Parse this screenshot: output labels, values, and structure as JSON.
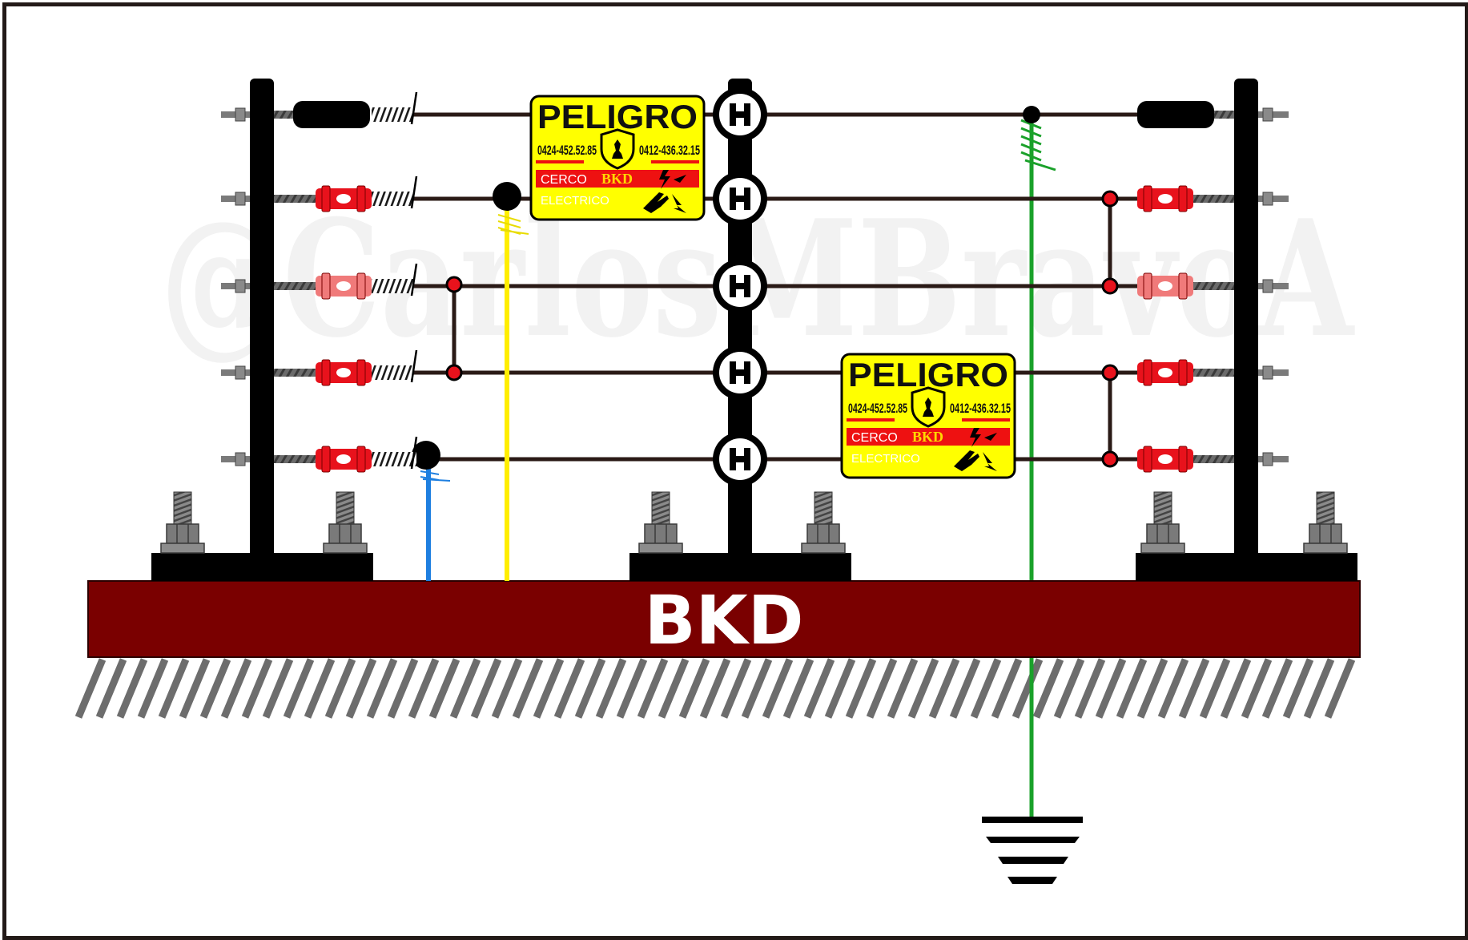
{
  "watermark": "@CarlosMBravoA",
  "base_label": "BKD",
  "signs": [
    {
      "title": "PELIGRO",
      "phone_left": "0424-452.52.85",
      "phone_right": "0412-436.32.15",
      "band_text": "CERCO",
      "brand": "BKD",
      "sub_text": "ELECTRICO"
    },
    {
      "title": "PELIGRO",
      "phone_left": "0424-452.52.85",
      "phone_right": "0412-436.32.15",
      "band_text": "CERCO",
      "brand": "BKD",
      "sub_text": "ELECTRICO"
    }
  ],
  "colors": {
    "wire": "#2a1a16",
    "post": "#000000",
    "insulator_red": "#e8121c",
    "base": "#7a0000",
    "hatch": "#6d6d6d",
    "sign_yellow": "#ffff00",
    "sign_red": "#ee1111",
    "yellow_lead": "#ffee00",
    "blue_lead": "#1e7fe0",
    "green_ground": "#1aa12a"
  },
  "fence": {
    "wire_count": 5,
    "post_count": 3,
    "ground_symbol": "ground-icon"
  }
}
